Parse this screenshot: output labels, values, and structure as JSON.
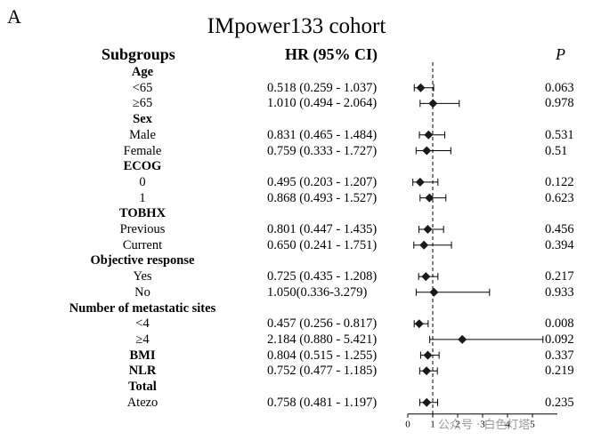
{
  "panel_label": "A",
  "watermark": "公众号 · 白色灯塔",
  "chart_data": {
    "type": "forest",
    "title": "IMpower133 cohort",
    "headers": {
      "subgroups": "Subgroups",
      "hr": "HR (95% CI)",
      "p": "P"
    },
    "reference_line": 1,
    "xlim": [
      0,
      6
    ],
    "x_ticks": [
      "0",
      "1",
      "2",
      "3",
      "4",
      "5"
    ],
    "rows": [
      {
        "label": "Age",
        "header": true
      },
      {
        "label": "<65",
        "hr_text": "0.518 (0.259 - 1.037)",
        "p": "0.063",
        "hr": 0.518,
        "lo": 0.259,
        "hi": 1.037
      },
      {
        "label": "≥65",
        "hr_text": "1.010 (0.494 - 2.064)",
        "p": "0.978",
        "hr": 1.01,
        "lo": 0.494,
        "hi": 2.064
      },
      {
        "label": "Sex",
        "header": true
      },
      {
        "label": "Male",
        "hr_text": "0.831 (0.465 - 1.484)",
        "p": "0.531",
        "hr": 0.831,
        "lo": 0.465,
        "hi": 1.484
      },
      {
        "label": "Female",
        "hr_text": "0.759 (0.333 - 1.727)",
        "p": "0.51",
        "hr": 0.759,
        "lo": 0.333,
        "hi": 1.727
      },
      {
        "label": "ECOG",
        "header": true
      },
      {
        "label": "0",
        "hr_text": "0.495 (0.203 - 1.207)",
        "p": "0.122",
        "hr": 0.495,
        "lo": 0.203,
        "hi": 1.207
      },
      {
        "label": "1",
        "hr_text": "0.868 (0.493 - 1.527)",
        "p": "0.623",
        "hr": 0.868,
        "lo": 0.493,
        "hi": 1.527
      },
      {
        "label": "TOBHX",
        "header": true
      },
      {
        "label": "Previous",
        "hr_text": "0.801 (0.447 - 1.435)",
        "p": "0.456",
        "hr": 0.801,
        "lo": 0.447,
        "hi": 1.435
      },
      {
        "label": "Current",
        "hr_text": "0.650 (0.241 - 1.751)",
        "p": "0.394",
        "hr": 0.65,
        "lo": 0.241,
        "hi": 1.751
      },
      {
        "label": "Objective response",
        "header": true
      },
      {
        "label": "Yes",
        "hr_text": "0.725 (0.435 - 1.208)",
        "p": "0.217",
        "hr": 0.725,
        "lo": 0.435,
        "hi": 1.208
      },
      {
        "label": "No",
        "hr_text": "1.050(0.336-3.279)",
        "p": "0.933",
        "hr": 1.05,
        "lo": 0.336,
        "hi": 3.279
      },
      {
        "label": "Number of metastatic sites",
        "header": true
      },
      {
        "label": "<4",
        "hr_text": "0.457 (0.256 - 0.817)",
        "p": "0.008",
        "hr": 0.457,
        "lo": 0.256,
        "hi": 0.817
      },
      {
        "label": "≥4",
        "hr_text": "2.184 (0.880 - 5.421)",
        "p": "0.092",
        "hr": 2.184,
        "lo": 0.88,
        "hi": 5.421
      },
      {
        "label": "BMI",
        "header": true,
        "hr_text": "0.804 (0.515 - 1.255)",
        "p": "0.337",
        "hr": 0.804,
        "lo": 0.515,
        "hi": 1.255
      },
      {
        "label": "NLR",
        "header": true,
        "hr_text": "0.752 (0.477 - 1.185)",
        "p": "0.219",
        "hr": 0.752,
        "lo": 0.477,
        "hi": 1.185
      },
      {
        "label": "Total",
        "header": true
      },
      {
        "label": "Atezo",
        "hr_text": "0.758 (0.481 - 1.197)",
        "p": "0.235",
        "hr": 0.758,
        "lo": 0.481,
        "hi": 1.197
      }
    ]
  }
}
